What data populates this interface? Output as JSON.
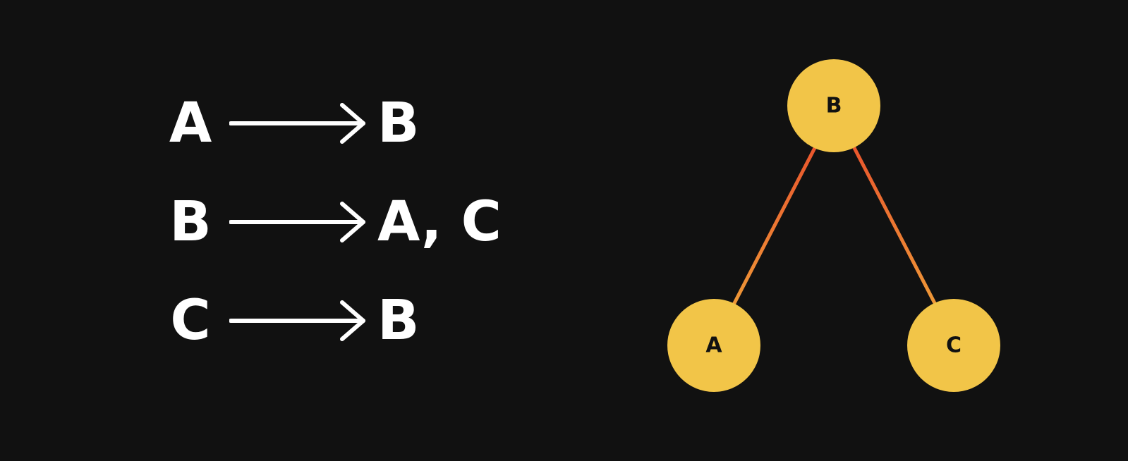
{
  "adjacency_list": [
    {
      "node": "A",
      "neighbors": "B"
    },
    {
      "node": "B",
      "neighbors": "A, C"
    },
    {
      "node": "C",
      "neighbors": "B"
    }
  ],
  "graph": {
    "nodes": [
      {
        "id": "B",
        "label": "B"
      },
      {
        "id": "A",
        "label": "A"
      },
      {
        "id": "C",
        "label": "C"
      }
    ],
    "edges": [
      {
        "from": "B",
        "to": "A"
      },
      {
        "from": "B",
        "to": "C"
      }
    ]
  },
  "colors": {
    "background": "#111111",
    "text": "#ffffff",
    "node_fill": "#f2c548",
    "node_text": "#111111",
    "edge_top": "#e8452a",
    "edge_bottom": "#f0a93a"
  }
}
